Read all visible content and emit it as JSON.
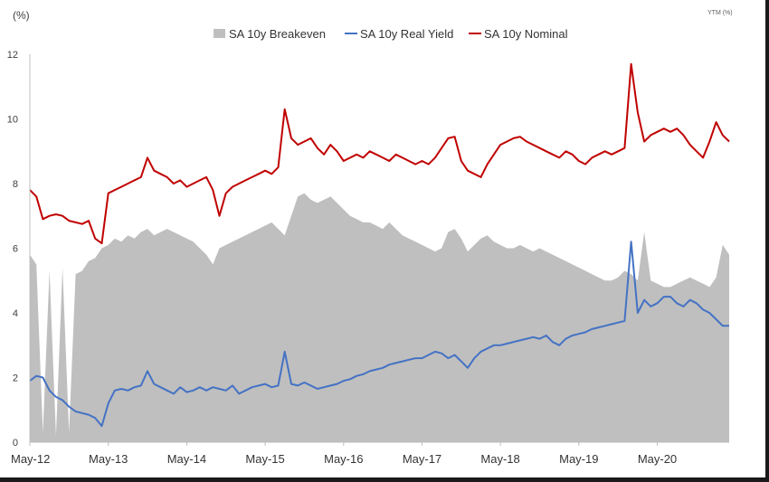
{
  "chart_data": {
    "type": "line",
    "title": "",
    "unit_left": "(%)",
    "unit_right": "YTM (%)",
    "ylim": [
      0,
      12
    ],
    "y_ticks": [
      0,
      2,
      4,
      6,
      8,
      10,
      12
    ],
    "x_start": "2012-05",
    "x_end": "2021-04",
    "x_tick_labels": [
      "May-12",
      "May-13",
      "May-14",
      "May-15",
      "May-16",
      "May-17",
      "May-18",
      "May-19",
      "May-20"
    ],
    "legend_position": "top-center",
    "grid": false,
    "x": [
      "2012-05",
      "2012-06",
      "2012-07",
      "2012-08",
      "2012-09",
      "2012-10",
      "2012-11",
      "2012-12",
      "2013-01",
      "2013-02",
      "2013-03",
      "2013-04",
      "2013-05",
      "2013-06",
      "2013-07",
      "2013-08",
      "2013-09",
      "2013-10",
      "2013-11",
      "2013-12",
      "2014-01",
      "2014-02",
      "2014-03",
      "2014-04",
      "2014-05",
      "2014-06",
      "2014-07",
      "2014-08",
      "2014-09",
      "2014-10",
      "2014-11",
      "2014-12",
      "2015-01",
      "2015-02",
      "2015-03",
      "2015-04",
      "2015-05",
      "2015-06",
      "2015-07",
      "2015-08",
      "2015-09",
      "2015-10",
      "2015-11",
      "2015-12",
      "2016-01",
      "2016-02",
      "2016-03",
      "2016-04",
      "2016-05",
      "2016-06",
      "2016-07",
      "2016-08",
      "2016-09",
      "2016-10",
      "2016-11",
      "2016-12",
      "2017-01",
      "2017-02",
      "2017-03",
      "2017-04",
      "2017-05",
      "2017-06",
      "2017-07",
      "2017-08",
      "2017-09",
      "2017-10",
      "2017-11",
      "2017-12",
      "2018-01",
      "2018-02",
      "2018-03",
      "2018-04",
      "2018-05",
      "2018-06",
      "2018-07",
      "2018-08",
      "2018-09",
      "2018-10",
      "2018-11",
      "2018-12",
      "2019-01",
      "2019-02",
      "2019-03",
      "2019-04",
      "2019-05",
      "2019-06",
      "2019-07",
      "2019-08",
      "2019-09",
      "2019-10",
      "2019-11",
      "2019-12",
      "2020-01",
      "2020-02",
      "2020-03",
      "2020-04",
      "2020-05",
      "2020-06",
      "2020-07",
      "2020-08",
      "2020-09",
      "2020-10",
      "2020-11",
      "2020-12",
      "2021-01",
      "2021-02",
      "2021-03",
      "2021-04"
    ],
    "series": [
      {
        "name": "SA 10y Breakeven",
        "kind": "area",
        "color": "#bfbfbf",
        "values": [
          5.8,
          5.5,
          0.3,
          5.3,
          0.2,
          5.4,
          0.3,
          5.2,
          5.3,
          5.6,
          5.7,
          6.0,
          6.1,
          6.3,
          6.2,
          6.4,
          6.3,
          6.5,
          6.6,
          6.4,
          6.5,
          6.6,
          6.5,
          6.4,
          6.3,
          6.2,
          6.0,
          5.8,
          5.5,
          6.0,
          6.1,
          6.2,
          6.3,
          6.4,
          6.5,
          6.6,
          6.7,
          6.8,
          6.6,
          6.4,
          7.0,
          7.6,
          7.7,
          7.5,
          7.4,
          7.5,
          7.6,
          7.4,
          7.2,
          7.0,
          6.9,
          6.8,
          6.8,
          6.7,
          6.6,
          6.8,
          6.6,
          6.4,
          6.3,
          6.2,
          6.1,
          6.0,
          5.9,
          6.0,
          6.5,
          6.6,
          6.3,
          5.9,
          6.1,
          6.3,
          6.4,
          6.2,
          6.1,
          6.0,
          6.0,
          6.1,
          6.0,
          5.9,
          6.0,
          5.9,
          5.8,
          5.7,
          5.6,
          5.5,
          5.4,
          5.3,
          5.2,
          5.1,
          5.0,
          5.0,
          5.1,
          5.3,
          5.2,
          5.0,
          6.5,
          5.0,
          4.9,
          4.8,
          4.8,
          4.9,
          5.0,
          5.1,
          5.0,
          4.9,
          4.8,
          5.1,
          6.1,
          5.8
        ]
      },
      {
        "name": "SA 10y Real Yield",
        "kind": "line",
        "color": "#4472c4",
        "values": [
          1.9,
          2.05,
          2.0,
          1.6,
          1.4,
          1.3,
          1.1,
          0.95,
          0.9,
          0.85,
          0.75,
          0.5,
          1.2,
          1.6,
          1.65,
          1.6,
          1.7,
          1.75,
          2.2,
          1.8,
          1.7,
          1.6,
          1.5,
          1.7,
          1.55,
          1.6,
          1.7,
          1.6,
          1.7,
          1.65,
          1.6,
          1.75,
          1.5,
          1.6,
          1.7,
          1.75,
          1.8,
          1.7,
          1.75,
          2.8,
          1.8,
          1.75,
          1.85,
          1.75,
          1.65,
          1.7,
          1.75,
          1.8,
          1.9,
          1.95,
          2.05,
          2.1,
          2.2,
          2.25,
          2.3,
          2.4,
          2.45,
          2.5,
          2.55,
          2.6,
          2.6,
          2.7,
          2.8,
          2.75,
          2.6,
          2.7,
          2.5,
          2.3,
          2.6,
          2.8,
          2.9,
          3.0,
          3.0,
          3.05,
          3.1,
          3.15,
          3.2,
          3.25,
          3.2,
          3.3,
          3.1,
          3.0,
          3.2,
          3.3,
          3.35,
          3.4,
          3.5,
          3.55,
          3.6,
          3.65,
          3.7,
          3.75,
          6.2,
          4.0,
          4.4,
          4.2,
          4.3,
          4.5,
          4.5,
          4.3,
          4.2,
          4.4,
          4.3,
          4.1,
          4.0,
          3.8,
          3.6,
          3.6
        ]
      },
      {
        "name": "SA 10y Nominal",
        "kind": "line",
        "color": "#c00000",
        "values": [
          7.8,
          7.6,
          6.9,
          7.0,
          7.05,
          7.0,
          6.85,
          6.8,
          6.75,
          6.85,
          6.3,
          6.15,
          7.7,
          7.8,
          7.9,
          8.0,
          8.1,
          8.2,
          8.8,
          8.4,
          8.3,
          8.2,
          8.0,
          8.1,
          7.9,
          8.0,
          8.1,
          8.2,
          7.8,
          7.0,
          7.7,
          7.9,
          8.0,
          8.1,
          8.2,
          8.3,
          8.4,
          8.3,
          8.5,
          10.3,
          9.4,
          9.2,
          9.3,
          9.4,
          9.1,
          8.9,
          9.2,
          9.0,
          8.7,
          8.8,
          8.9,
          8.8,
          9.0,
          8.9,
          8.8,
          8.7,
          8.9,
          8.8,
          8.7,
          8.6,
          8.7,
          8.6,
          8.8,
          9.1,
          9.4,
          9.45,
          8.7,
          8.4,
          8.3,
          8.2,
          8.6,
          8.9,
          9.2,
          9.3,
          9.4,
          9.45,
          9.3,
          9.2,
          9.1,
          9.0,
          8.9,
          8.8,
          9.0,
          8.9,
          8.7,
          8.6,
          8.8,
          8.9,
          9.0,
          8.9,
          9.0,
          9.1,
          11.7,
          10.2,
          9.3,
          9.5,
          9.6,
          9.7,
          9.6,
          9.7,
          9.5,
          9.2,
          9.0,
          8.8,
          9.3,
          9.9,
          9.5,
          9.3
        ]
      }
    ]
  }
}
